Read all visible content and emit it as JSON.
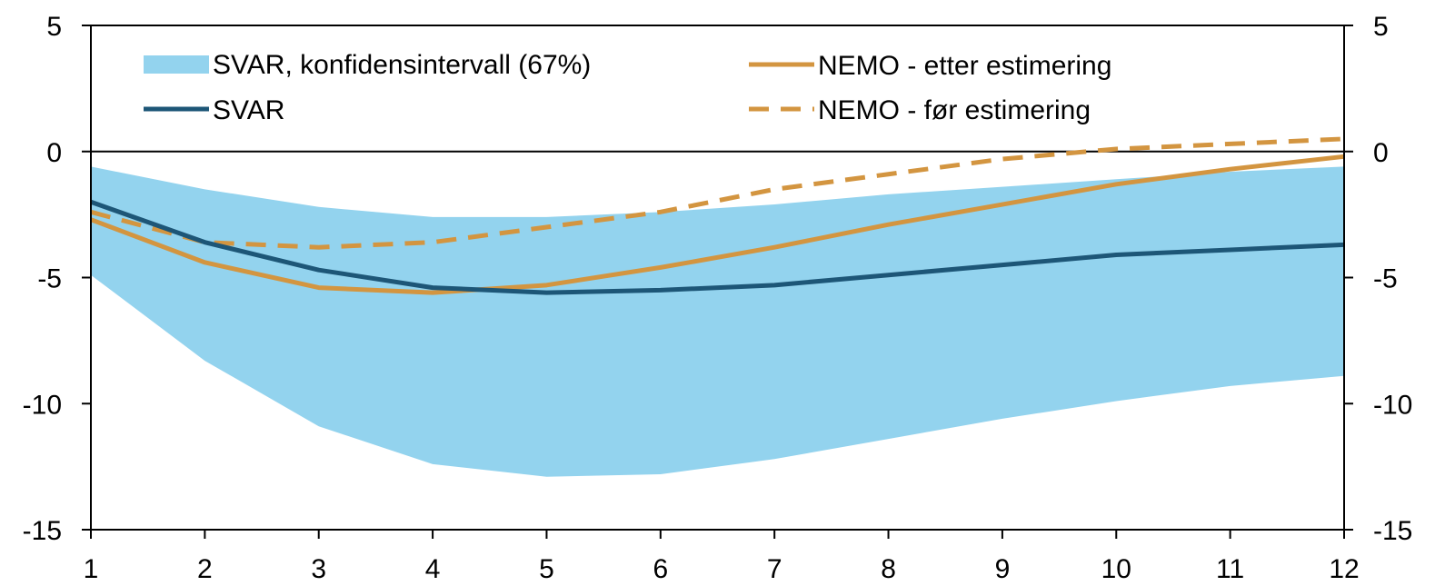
{
  "chart_data": {
    "type": "line",
    "title": "",
    "xlabel": "",
    "ylabel": "",
    "x": [
      1,
      2,
      3,
      4,
      5,
      6,
      7,
      8,
      9,
      10,
      11,
      12
    ],
    "xlim": [
      1,
      12
    ],
    "ylim": [
      -15,
      5
    ],
    "yticks": [
      5,
      0,
      -5,
      -10,
      -15
    ],
    "ytick_labels": [
      "5",
      "0",
      "-5",
      "-10",
      "-15"
    ],
    "xtick_labels": [
      "1",
      "2",
      "3",
      "4",
      "5",
      "6",
      "7",
      "8",
      "9",
      "10",
      "11",
      "12"
    ],
    "secondary_y_axis": true,
    "grid": false,
    "legend_position": "top",
    "band": {
      "name": "SVAR, konfidensintervall (67%)",
      "color": "#93d3ee",
      "upper": [
        -0.6,
        -1.5,
        -2.2,
        -2.6,
        -2.6,
        -2.4,
        -2.1,
        -1.7,
        -1.4,
        -1.1,
        -0.8,
        -0.6
      ],
      "lower": [
        -4.9,
        -8.3,
        -10.9,
        -12.4,
        -12.9,
        -12.8,
        -12.2,
        -11.4,
        -10.6,
        -9.9,
        -9.3,
        -8.9
      ]
    },
    "series": [
      {
        "name": "SVAR",
        "color": "#1d5677",
        "dash": "solid",
        "values": [
          -2.0,
          -3.6,
          -4.7,
          -5.4,
          -5.6,
          -5.5,
          -5.3,
          -4.9,
          -4.5,
          -4.1,
          -3.9,
          -3.7
        ]
      },
      {
        "name": "NEMO - etter estimering",
        "color": "#d39540",
        "dash": "solid",
        "values": [
          -2.7,
          -4.4,
          -5.4,
          -5.6,
          -5.3,
          -4.6,
          -3.8,
          -2.9,
          -2.1,
          -1.3,
          -0.7,
          -0.2
        ]
      },
      {
        "name": "NEMO - før estimering",
        "color": "#d39540",
        "dash": "dashed",
        "values": [
          -2.4,
          -3.6,
          -3.8,
          -3.6,
          -3.0,
          -2.4,
          -1.5,
          -0.9,
          -0.3,
          0.1,
          0.3,
          0.5
        ]
      }
    ]
  }
}
